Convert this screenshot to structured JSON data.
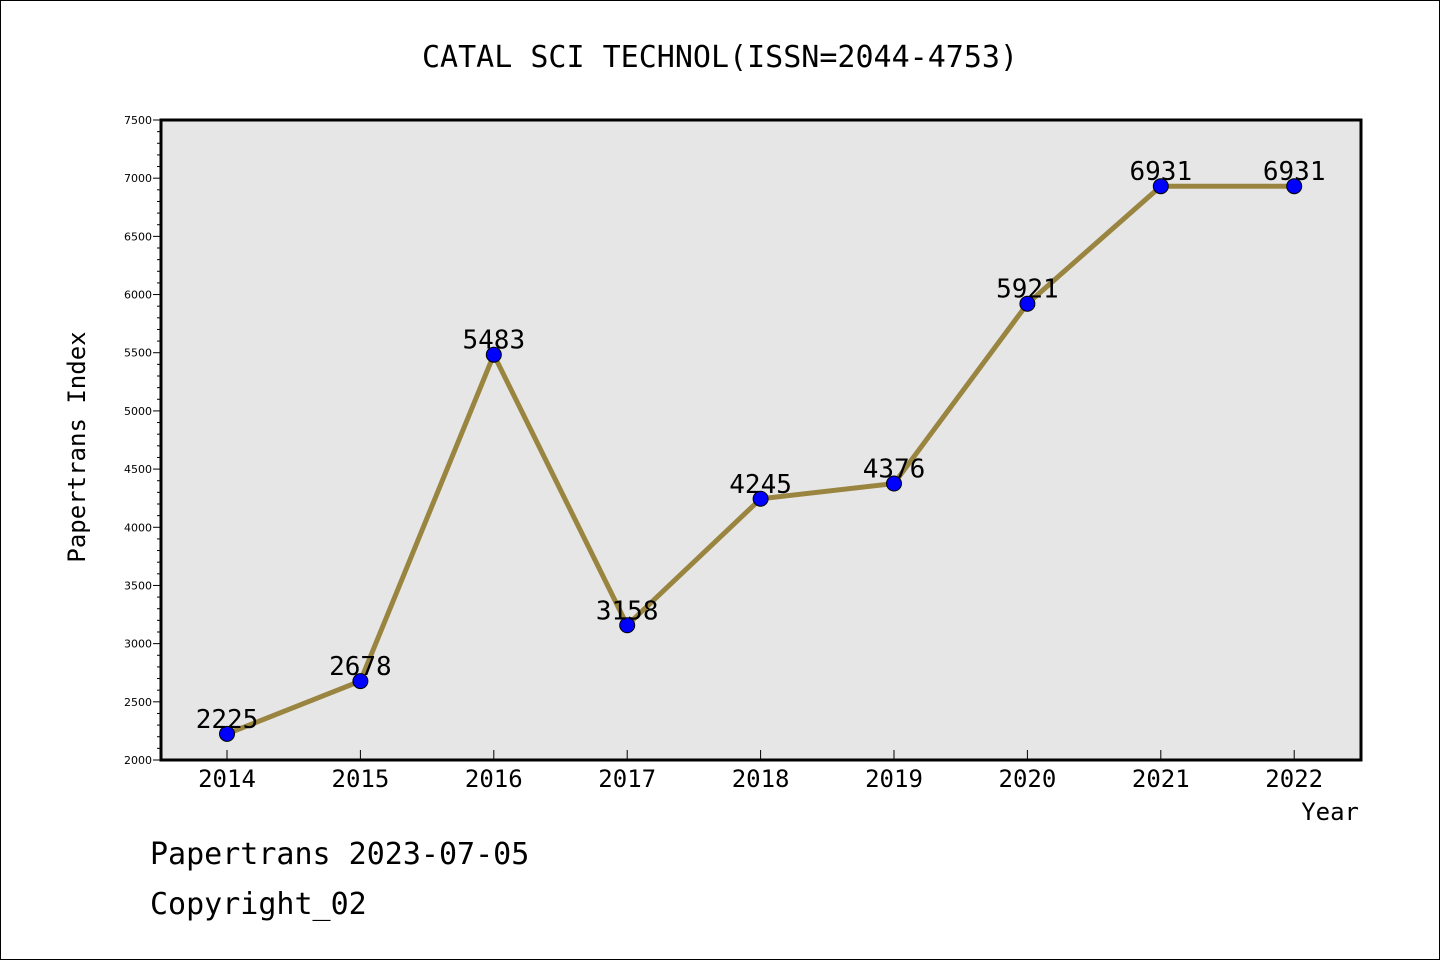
{
  "chart_data": {
    "type": "line",
    "title": "CATAL SCI TECHNOL(ISSN=2044-4753)",
    "xlabel": "Year",
    "ylabel": "Papertrans Index",
    "categories": [
      "2014",
      "2015",
      "2016",
      "2017",
      "2018",
      "2019",
      "2020",
      "2021",
      "2022"
    ],
    "values": [
      2225,
      2678,
      5483,
      3158,
      4245,
      4376,
      5921,
      6931,
      6931
    ],
    "data_labels": [
      "2225",
      "2678",
      "5483",
      "3158",
      "4245",
      "4376",
      "5921",
      "6931",
      "6931"
    ],
    "ylim": [
      2000,
      7500
    ],
    "yticks": [
      "2000",
      "2500",
      "3000",
      "3500",
      "4000",
      "4500",
      "5000",
      "5500",
      "6000",
      "6500",
      "7000",
      "7500"
    ],
    "grid": false,
    "colors": {
      "line": "#9a8540",
      "marker": "#0000ff",
      "plot_background": "#e6e6e6"
    }
  },
  "footer": {
    "line1": "Papertrans 2023-07-05",
    "line2": "Copyright_02"
  }
}
